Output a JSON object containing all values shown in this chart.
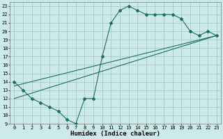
{
  "xlabel": "Humidex (Indice chaleur)",
  "bg_color": "#cdeaea",
  "grid_color": "#aecece",
  "line_color": "#1a6e62",
  "xlim": [
    -0.5,
    23.5
  ],
  "ylim": [
    9,
    23.5
  ],
  "xticks": [
    0,
    1,
    2,
    3,
    4,
    5,
    6,
    7,
    8,
    9,
    10,
    11,
    12,
    13,
    14,
    15,
    16,
    17,
    18,
    19,
    20,
    21,
    22,
    23
  ],
  "yticks": [
    9,
    10,
    11,
    12,
    13,
    14,
    15,
    16,
    17,
    18,
    19,
    20,
    21,
    22,
    23
  ],
  "data_x": [
    0,
    1,
    2,
    3,
    4,
    5,
    6,
    7,
    8,
    9,
    10,
    11,
    12,
    13,
    14,
    15,
    16,
    17,
    18,
    19,
    20,
    21,
    22,
    23
  ],
  "data_y": [
    14,
    13,
    12,
    11.5,
    11,
    10.5,
    9.5,
    9,
    12,
    12,
    17,
    21,
    22.5,
    23,
    22.5,
    22,
    22,
    22,
    22,
    21.5,
    20,
    19.5,
    20,
    19.5
  ],
  "line1_x": [
    0,
    23
  ],
  "line1_y": [
    13.5,
    19.5
  ],
  "line2_x": [
    0,
    23
  ],
  "line2_y": [
    12.0,
    19.5
  ],
  "tick_fontsize": 5,
  "xlabel_fontsize": 6.5
}
